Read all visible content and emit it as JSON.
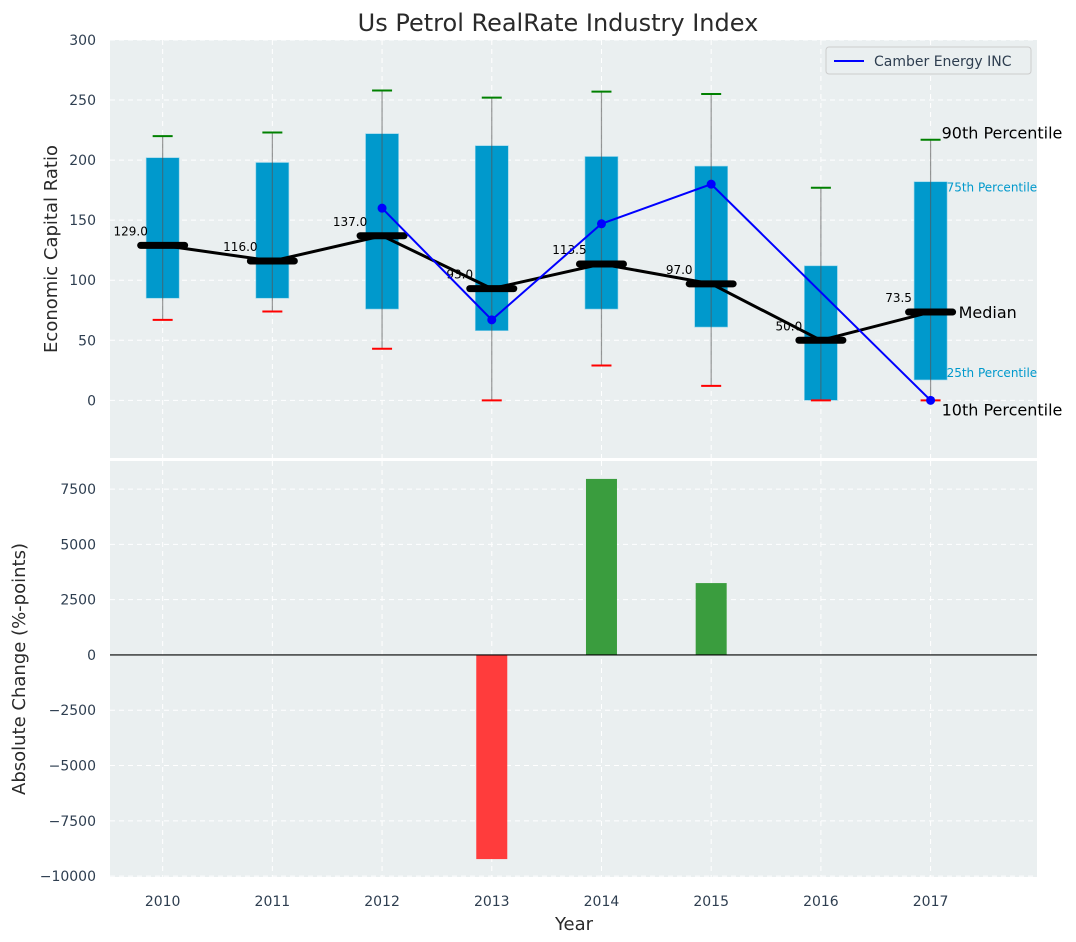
{
  "chart_data": [
    {
      "type": "box-line",
      "title": "Us Petrol RealRate Industry Index",
      "xlabel": "",
      "ylabel": "Economic Capital Ratio",
      "ylim": [
        -48,
        300
      ],
      "yticks": [
        0,
        50,
        100,
        150,
        200,
        250,
        300
      ],
      "grid": true,
      "categories": [
        "2010",
        "2011",
        "2012",
        "2013",
        "2014",
        "2015",
        "2016",
        "2017"
      ],
      "p90": [
        220,
        223,
        258,
        252,
        257,
        255,
        177,
        217
      ],
      "p75": [
        202,
        198,
        222,
        212,
        203,
        195,
        112,
        182
      ],
      "median": [
        129.0,
        116.0,
        137.0,
        93.0,
        113.5,
        97.0,
        50.0,
        73.5
      ],
      "median_labels": [
        "129.0",
        "116.0",
        "137.0",
        "93.0",
        "113.5",
        "97.0",
        "50.0",
        "73.5"
      ],
      "p25": [
        85,
        85,
        76,
        58,
        76,
        61,
        0,
        17
      ],
      "p10": [
        67,
        74,
        43,
        0,
        29,
        12,
        0,
        0
      ],
      "series": [
        {
          "name": "Camber Energy INC",
          "color": "#0000ff",
          "values": [
            null,
            null,
            160,
            67,
            147,
            180,
            null,
            0
          ]
        }
      ],
      "legend": {
        "placement": "top-right",
        "entries": [
          "Camber Energy INC"
        ]
      },
      "annotations": {
        "p90": "90th Percentile",
        "p75": "75th Percentile",
        "median": "Median",
        "p25": "25th Percentile",
        "p10": "10th Percentile"
      },
      "colors": {
        "box": "#0099cc",
        "p90_tick": "#008000",
        "p10_tick": "#ff0000",
        "median": "#000000",
        "bg": "#eaeff0"
      }
    },
    {
      "type": "bar",
      "xlabel": "Year",
      "ylabel": "Absolute Change (%-points)",
      "ylim": [
        -10040,
        8770
      ],
      "yticks": [
        -10000,
        -7500,
        -5000,
        -2500,
        0,
        2500,
        5000,
        7500
      ],
      "ytick_labels": [
        "−10000",
        "−7500",
        "−5000",
        "−2500",
        "0",
        "2500",
        "5000",
        "7500"
      ],
      "categories": [
        "2010",
        "2011",
        "2012",
        "2013",
        "2014",
        "2015",
        "2016",
        "2017"
      ],
      "values": [
        0,
        0,
        0,
        -9230,
        7960,
        3250,
        0,
        0
      ],
      "colors": {
        "positive": "#3a9d3e",
        "negative": "#ff3c3c"
      }
    }
  ]
}
